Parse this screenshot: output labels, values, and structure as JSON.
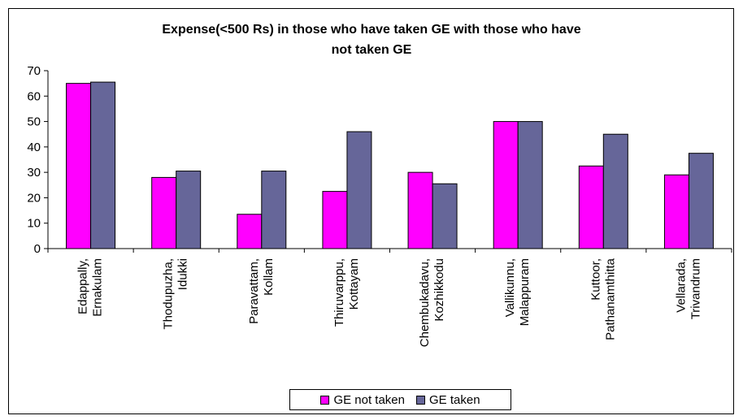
{
  "chart_data": {
    "type": "bar",
    "title": "Expense(<500 Rs) in those who have taken GE with those who have not taken GE",
    "title_lines": [
      "Expense(<500 Rs) in those who have taken GE with those who have",
      "not taken GE"
    ],
    "categories": [
      [
        "Edappally,",
        "Ernakulam"
      ],
      [
        "Thodupuzha,",
        "Idukki"
      ],
      [
        "Paravattam,",
        "Kollam"
      ],
      [
        "Thiruvarppu,",
        "Kottayam"
      ],
      [
        "Chembukadavu,",
        "Kozhikkodu"
      ],
      [
        "Vallikunnu,",
        "Malappuram"
      ],
      [
        "Kuttoor,",
        "Pathanamthitta"
      ],
      [
        "Vellarada,",
        "Trivandrum"
      ]
    ],
    "series": [
      {
        "name": "GE not taken",
        "color": "#ff00ff",
        "values": [
          65,
          28,
          13.5,
          22.5,
          30,
          50,
          32.5,
          29
        ]
      },
      {
        "name": "GE taken",
        "color": "#666699",
        "values": [
          65.5,
          30.5,
          30.5,
          46,
          25.5,
          50,
          45,
          37.5
        ]
      }
    ],
    "ylim": [
      0,
      70
    ],
    "yticks": [
      0,
      10,
      20,
      30,
      40,
      50,
      60,
      70
    ],
    "grid": false,
    "legend_position": "bottom"
  }
}
